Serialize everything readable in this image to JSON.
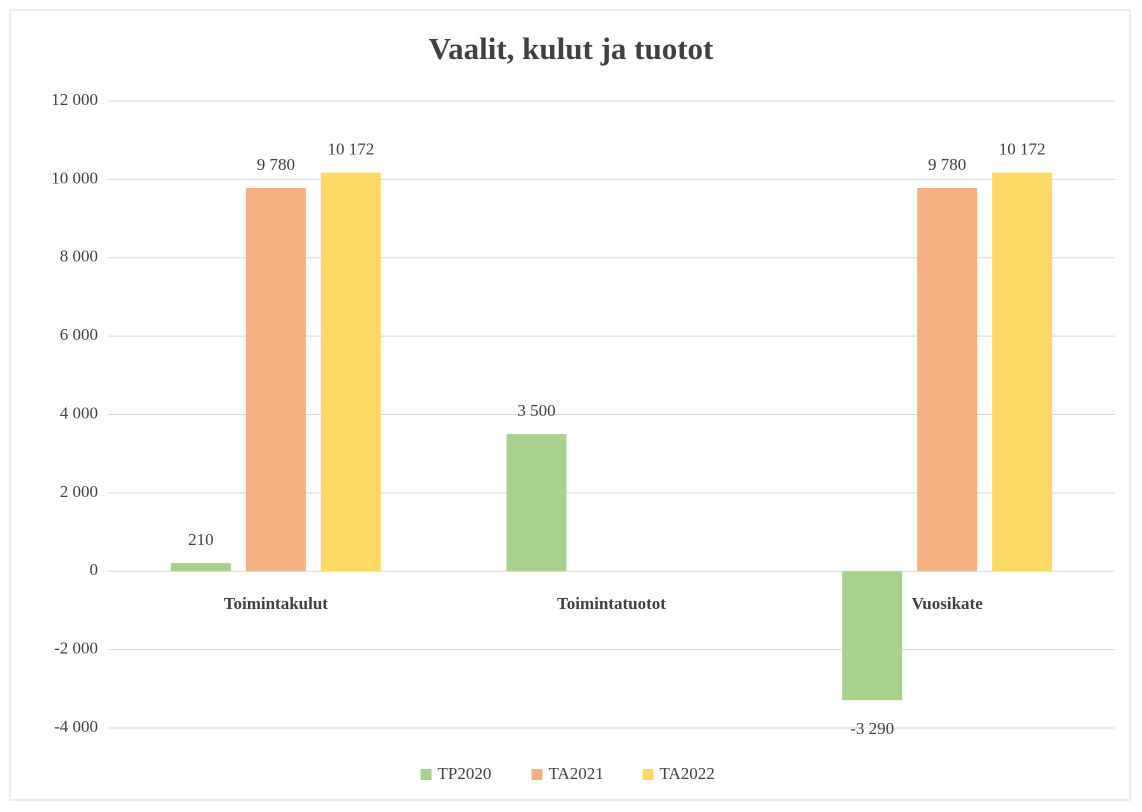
{
  "chart_data": {
    "type": "bar",
    "title": "Vaalit, kulut ja tuotot",
    "categories": [
      "Toimintakulut",
      "Toimintatuotot",
      "Vuosikate"
    ],
    "series": [
      {
        "name": "TP2020",
        "color": "#a9d18e",
        "values": [
          210,
          3500,
          -3290
        ],
        "value_labels": [
          "210",
          "3 500",
          "-3 290"
        ]
      },
      {
        "name": "TA2021",
        "color": "#f4b183",
        "values": [
          9780,
          null,
          9780
        ],
        "value_labels": [
          "9 780",
          null,
          "9 780"
        ]
      },
      {
        "name": "TA2022",
        "color": "#ffd966",
        "values": [
          10172,
          null,
          10172
        ],
        "value_labels": [
          "10 172",
          null,
          "10 172"
        ]
      }
    ],
    "ylim": [
      -4000,
      12000
    ],
    "yticks": [
      {
        "value": -4000,
        "label": "-4 000"
      },
      {
        "value": -2000,
        "label": "-2 000"
      },
      0,
      {
        "value": 2000,
        "label": "2 000"
      },
      {
        "value": 4000,
        "label": "4 000"
      },
      {
        "value": 6000,
        "label": "6 000"
      },
      {
        "value": 8000,
        "label": "8 000"
      },
      {
        "value": 10000,
        "label": "10 000"
      },
      {
        "value": 12000,
        "label": "12 000"
      }
    ],
    "grid": true,
    "legend": "bottom"
  }
}
